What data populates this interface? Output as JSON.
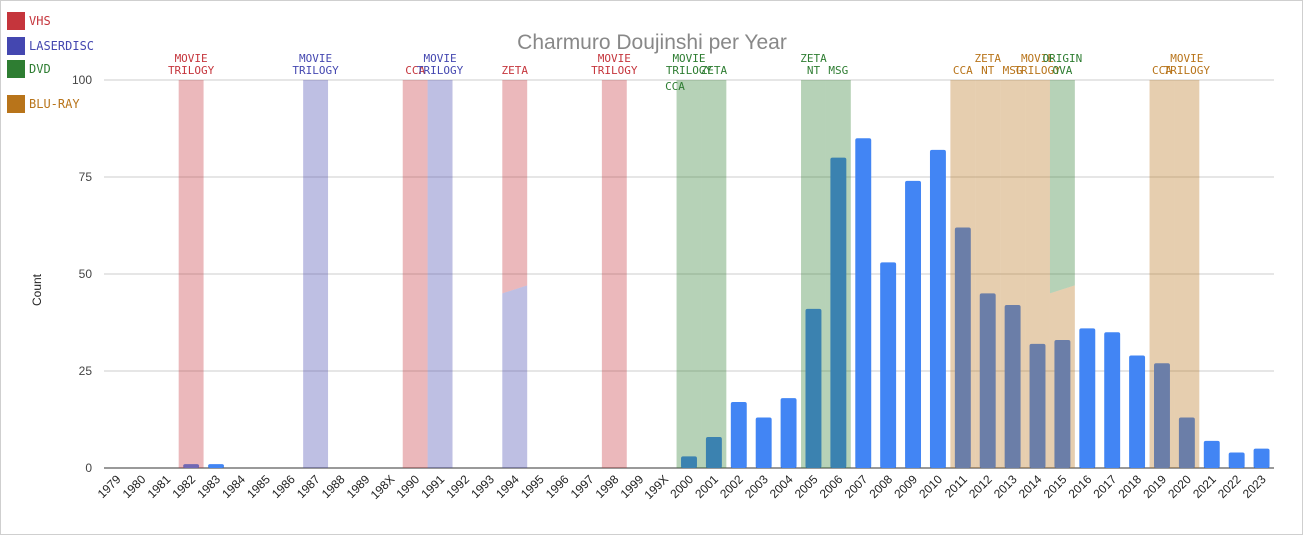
{
  "chart_data": {
    "type": "bar",
    "title": "Charmuro Doujinshi per Year",
    "ylabel": "Count",
    "xlabel": "",
    "ylim": [
      0,
      100
    ],
    "yticks": [
      0,
      25,
      50,
      75,
      100
    ],
    "grid": true,
    "categories": [
      "1979",
      "1980",
      "1981",
      "1982",
      "1983",
      "1984",
      "1985",
      "1986",
      "1987",
      "1988",
      "1989",
      "198X",
      "1990",
      "1991",
      "1992",
      "1993",
      "1994",
      "1995",
      "1996",
      "1997",
      "1998",
      "1999",
      "199X",
      "2000",
      "2001",
      "2002",
      "2003",
      "2004",
      "2005",
      "2006",
      "2007",
      "2008",
      "2009",
      "2010",
      "2011",
      "2012",
      "2013",
      "2014",
      "2015",
      "2016",
      "2017",
      "2018",
      "2019",
      "2020",
      "2021",
      "2022",
      "2023"
    ],
    "values": [
      0,
      0,
      0,
      1,
      1,
      0,
      0,
      0,
      0,
      0,
      0,
      0,
      0,
      0,
      0,
      0,
      0,
      0,
      0,
      0,
      0,
      0,
      0,
      3,
      8,
      17,
      13,
      18,
      41,
      80,
      85,
      53,
      74,
      82,
      62,
      45,
      42,
      32,
      33,
      36,
      35,
      29,
      27,
      13,
      7,
      4,
      5
    ],
    "bar_color": "#4285f4",
    "legend": [
      {
        "label": "VHS",
        "color": "#c5353c"
      },
      {
        "label": "LaserDisc",
        "color": "#4447b0"
      },
      {
        "label": "DVD",
        "color": "#2e7d32"
      },
      {
        "label": "Blu-ray",
        "color": "#b8741a"
      }
    ],
    "release_bands": [
      {
        "year": "1982",
        "format": "VHS",
        "label": "MOVIE TRILOGY"
      },
      {
        "year": "1987",
        "format": "LaserDisc",
        "label": "MOVIE TRILOGY"
      },
      {
        "year": "1990",
        "format": "VHS",
        "label": "CCA"
      },
      {
        "year": "1991",
        "format": "LaserDisc",
        "label": "MOVIE TRILOGY"
      },
      {
        "year": "1994",
        "format": "VHS",
        "label": "ZETA",
        "split_with": "LaserDisc",
        "split_level": 45
      },
      {
        "year": "1998",
        "format": "VHS",
        "label": "MOVIE TRILOGY"
      },
      {
        "year": "2000",
        "format": "DVD",
        "label": "MOVIE TRILOGY",
        "label2": "CCA"
      },
      {
        "year": "2001",
        "format": "DVD",
        "label": "ZETA"
      },
      {
        "year": "2005",
        "format": "DVD",
        "label": "ZETA NT"
      },
      {
        "year": "2006",
        "format": "DVD",
        "label": "MSG"
      },
      {
        "year": "2011",
        "format": "Blu-ray",
        "label": "CCA"
      },
      {
        "year": "2012",
        "format": "Blu-ray",
        "label": "ZETA NT"
      },
      {
        "year": "2013",
        "format": "Blu-ray",
        "label": "MSG"
      },
      {
        "year": "2014",
        "format": "Blu-ray",
        "label": "MOVIE TRILOGY"
      },
      {
        "year": "2015",
        "format": "DVD",
        "label": "ORIGIN OVA",
        "split_with": "Blu-ray",
        "split_level": 45
      },
      {
        "year": "2019",
        "format": "Blu-ray",
        "label": "CCA"
      },
      {
        "year": "2020",
        "format": "Blu-ray",
        "label": "MOVIE TRILOGY"
      }
    ]
  }
}
